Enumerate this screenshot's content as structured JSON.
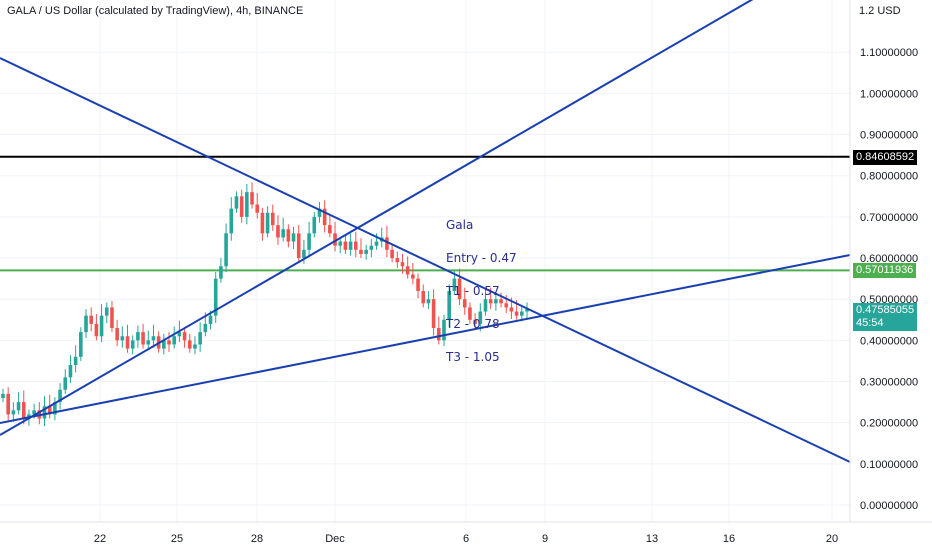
{
  "header": {
    "title": "GALA / US Dollar (calculated by TradingView), 4h, BINANCE"
  },
  "axis": {
    "currency": "USD",
    "top_label": "1.2",
    "y_ticks": [
      "1.10000000",
      "1.00000000",
      "0.90000000",
      "0.80000000",
      "0.70000000",
      "0.60000000",
      "0.50000000",
      "0.40000000",
      "0.30000000",
      "0.20000000",
      "0.10000000",
      "0.00000000"
    ],
    "x_ticks": [
      "22",
      "25",
      "28",
      "Dec",
      "6",
      "9",
      "13",
      "16",
      "20"
    ]
  },
  "price_tags": {
    "black": "0.84608592",
    "green": "0.57011936",
    "last": "0.47585055",
    "countdown": "45:54"
  },
  "colors": {
    "up": "#26a69a",
    "down": "#ef5350",
    "trendline": "#1a3fb0",
    "black_line": "#000000",
    "green_line": "#4caf50"
  },
  "note": {
    "lines": [
      "Gala",
      "Entry - 0.47",
      "T1 - 0.57",
      "T2 - 0.78",
      "T3 - 1.05"
    ]
  },
  "chart_data": {
    "type": "candlestick",
    "ylim": [
      -0.05,
      1.25
    ],
    "horizontal_levels": [
      {
        "value": 0.84608592,
        "color": "#000000"
      },
      {
        "value": 0.57011936,
        "color": "#4caf50"
      }
    ],
    "candles_close_approx": [
      0.27,
      0.22,
      0.23,
      0.25,
      0.21,
      0.22,
      0.23,
      0.21,
      0.24,
      0.22,
      0.25,
      0.28,
      0.31,
      0.34,
      0.36,
      0.42,
      0.46,
      0.44,
      0.41,
      0.46,
      0.48,
      0.43,
      0.4,
      0.41,
      0.38,
      0.4,
      0.42,
      0.39,
      0.4,
      0.41,
      0.38,
      0.4,
      0.39,
      0.41,
      0.42,
      0.4,
      0.38,
      0.39,
      0.42,
      0.44,
      0.46,
      0.55,
      0.58,
      0.66,
      0.72,
      0.75,
      0.7,
      0.76,
      0.73,
      0.71,
      0.66,
      0.71,
      0.68,
      0.65,
      0.67,
      0.64,
      0.66,
      0.6,
      0.62,
      0.66,
      0.7,
      0.72,
      0.68,
      0.66,
      0.63,
      0.64,
      0.62,
      0.64,
      0.62,
      0.61,
      0.62,
      0.63,
      0.64,
      0.65,
      0.62,
      0.6,
      0.59,
      0.58,
      0.56,
      0.55,
      0.52,
      0.49,
      0.5,
      0.43,
      0.4,
      0.45,
      0.52,
      0.55,
      0.5,
      0.48,
      0.45,
      0.44,
      0.47,
      0.5,
      0.49,
      0.5,
      0.49,
      0.48,
      0.47,
      0.46,
      0.47,
      0.476
    ]
  }
}
